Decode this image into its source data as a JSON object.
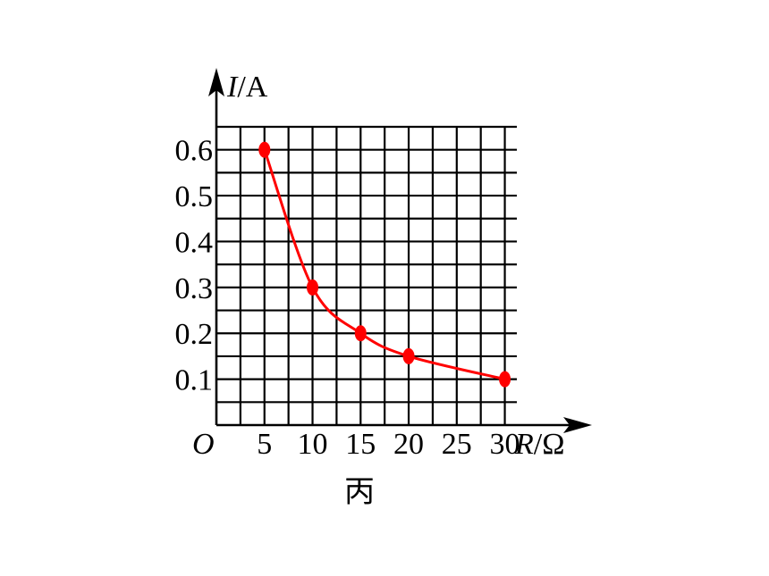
{
  "chart_data": {
    "type": "line",
    "x_axis": {
      "label_var": "R",
      "label_unit": "/Ω",
      "ticks": [
        5,
        10,
        15,
        20,
        25,
        30
      ],
      "range": [
        0,
        31.25
      ]
    },
    "y_axis": {
      "label_var": "I",
      "label_unit": "/A",
      "ticks": [
        0.1,
        0.2,
        0.3,
        0.4,
        0.5,
        0.6
      ],
      "range": [
        0,
        0.65
      ]
    },
    "origin_label": "O",
    "caption": "丙",
    "grid": true,
    "grid_x_step": 2.5,
    "grid_y_step": 0.05,
    "series": [
      {
        "points": [
          [
            5,
            0.6
          ],
          [
            10,
            0.3
          ],
          [
            15,
            0.2
          ],
          [
            20,
            0.15
          ],
          [
            30,
            0.1
          ]
        ],
        "color": "#ff0000"
      }
    ],
    "tick_labels_x": [
      "5",
      "10",
      "15",
      "20",
      "25",
      "30"
    ],
    "tick_labels_y": [
      "0.6",
      "0.5",
      "0.4",
      "0.3",
      "0.2",
      "0.1"
    ]
  }
}
